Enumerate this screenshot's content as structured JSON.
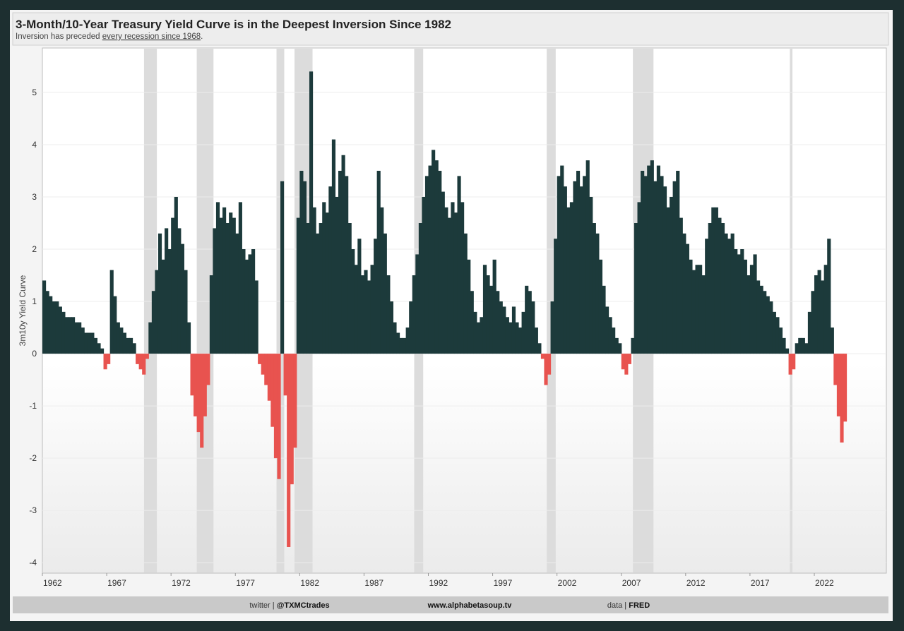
{
  "chart_data": {
    "type": "bar",
    "title": "3-Month/10-Year Treasury Yield Curve is in the Deepest Inversion Since 1982",
    "subtitle_prefix": "Inversion has preceded",
    "subtitle_link": "every recession since 1968",
    "subtitle_suffix": ".",
    "y_label": "3m10y Yield Curve",
    "footer": [
      {
        "label": "twitter |",
        "value": "@TXMCtrades"
      },
      {
        "label": "",
        "value": "www.alphabetasoup.tv"
      },
      {
        "label": "data |",
        "value": "FRED"
      }
    ],
    "color": "#1c3a3b",
    "negative_color": "#e8534f",
    "recession_color": "#dcdcdc",
    "grid": true,
    "xlim": [
      1962,
      2027.6
    ],
    "ylim": [
      -4.2,
      5.85
    ],
    "xticks": [
      1962,
      1967,
      1972,
      1977,
      1982,
      1987,
      1992,
      1997,
      2002,
      2007,
      2012,
      2017,
      2022
    ],
    "yticks": [
      -4,
      -3,
      -2,
      -1,
      0,
      1,
      2,
      3,
      4,
      5
    ],
    "recessions": [
      [
        1969.9,
        1970.9
      ],
      [
        1974.0,
        1975.3
      ],
      [
        1980.2,
        1980.8
      ],
      [
        1981.6,
        1983.0
      ],
      [
        1990.9,
        1991.6
      ],
      [
        2001.2,
        2001.9
      ],
      [
        2007.9,
        2009.5
      ],
      [
        2020.1,
        2020.3
      ]
    ],
    "x": [
      1962,
      1962.25,
      1962.5,
      1962.75,
      1963,
      1963.25,
      1963.5,
      1963.75,
      1964,
      1964.25,
      1964.5,
      1964.75,
      1965,
      1965.25,
      1965.5,
      1965.75,
      1966,
      1966.25,
      1966.5,
      1966.75,
      1967,
      1967.25,
      1967.5,
      1967.75,
      1968,
      1968.25,
      1968.5,
      1968.75,
      1969,
      1969.25,
      1969.5,
      1969.75,
      1970,
      1970.25,
      1970.5,
      1970.75,
      1971,
      1971.25,
      1971.5,
      1971.75,
      1972,
      1972.25,
      1972.5,
      1972.75,
      1973,
      1973.25,
      1973.5,
      1973.75,
      1974,
      1974.25,
      1974.5,
      1974.75,
      1975,
      1975.25,
      1975.5,
      1975.75,
      1976,
      1976.25,
      1976.5,
      1976.75,
      1977,
      1977.25,
      1977.5,
      1977.75,
      1978,
      1978.25,
      1978.5,
      1978.75,
      1979,
      1979.25,
      1979.5,
      1979.75,
      1980,
      1980.25,
      1980.5,
      1980.75,
      1981,
      1981.25,
      1981.5,
      1981.75,
      1982,
      1982.25,
      1982.5,
      1982.75,
      1983,
      1983.25,
      1983.5,
      1983.75,
      1984,
      1984.25,
      1984.5,
      1984.75,
      1985,
      1985.25,
      1985.5,
      1985.75,
      1986,
      1986.25,
      1986.5,
      1986.75,
      1987,
      1987.25,
      1987.5,
      1987.75,
      1988,
      1988.25,
      1988.5,
      1988.75,
      1989,
      1989.25,
      1989.5,
      1989.75,
      1990,
      1990.25,
      1990.5,
      1990.75,
      1991,
      1991.25,
      1991.5,
      1991.75,
      1992,
      1992.25,
      1992.5,
      1992.75,
      1993,
      1993.25,
      1993.5,
      1993.75,
      1994,
      1994.25,
      1994.5,
      1994.75,
      1995,
      1995.25,
      1995.5,
      1995.75,
      1996,
      1996.25,
      1996.5,
      1996.75,
      1997,
      1997.25,
      1997.5,
      1997.75,
      1998,
      1998.25,
      1998.5,
      1998.75,
      1999,
      1999.25,
      1999.5,
      1999.75,
      2000,
      2000.25,
      2000.5,
      2000.75,
      2001,
      2001.25,
      2001.5,
      2001.75,
      2002,
      2002.25,
      2002.5,
      2002.75,
      2003,
      2003.25,
      2003.5,
      2003.75,
      2004,
      2004.25,
      2004.5,
      2004.75,
      2005,
      2005.25,
      2005.5,
      2005.75,
      2006,
      2006.25,
      2006.5,
      2006.75,
      2007,
      2007.25,
      2007.5,
      2007.75,
      2008,
      2008.25,
      2008.5,
      2008.75,
      2009,
      2009.25,
      2009.5,
      2009.75,
      2010,
      2010.25,
      2010.5,
      2010.75,
      2011,
      2011.25,
      2011.5,
      2011.75,
      2012,
      2012.25,
      2012.5,
      2012.75,
      2013,
      2013.25,
      2013.5,
      2013.75,
      2014,
      2014.25,
      2014.5,
      2014.75,
      2015,
      2015.25,
      2015.5,
      2015.75,
      2016,
      2016.25,
      2016.5,
      2016.75,
      2017,
      2017.25,
      2017.5,
      2017.75,
      2018,
      2018.25,
      2018.5,
      2018.75,
      2019,
      2019.25,
      2019.5,
      2019.75,
      2020,
      2020.25,
      2020.5,
      2020.75,
      2021,
      2021.25,
      2021.5,
      2021.75,
      2022,
      2022.25,
      2022.5,
      2022.75,
      2023,
      2023.25,
      2023.5,
      2023.75,
      2024,
      2024.25
    ],
    "values": [
      1.4,
      1.2,
      1.1,
      1.0,
      1.0,
      0.9,
      0.8,
      0.7,
      0.7,
      0.7,
      0.6,
      0.6,
      0.5,
      0.4,
      0.4,
      0.4,
      0.3,
      0.2,
      0.1,
      -0.3,
      -0.2,
      1.6,
      1.1,
      0.6,
      0.5,
      0.4,
      0.3,
      0.3,
      0.2,
      -0.2,
      -0.3,
      -0.4,
      -0.1,
      0.6,
      1.2,
      1.6,
      2.3,
      1.8,
      2.4,
      2.0,
      2.6,
      3.0,
      2.4,
      2.1,
      1.6,
      0.6,
      -0.8,
      -1.2,
      -1.5,
      -1.8,
      -1.2,
      -0.6,
      1.5,
      2.4,
      2.9,
      2.6,
      2.8,
      2.5,
      2.7,
      2.6,
      2.3,
      2.9,
      2.0,
      1.8,
      1.9,
      2.0,
      1.4,
      -0.2,
      -0.4,
      -0.6,
      -0.9,
      -1.4,
      -2.0,
      -2.4,
      3.3,
      -0.8,
      -3.7,
      -2.5,
      -1.8,
      2.6,
      3.5,
      3.3,
      2.5,
      5.4,
      2.8,
      2.3,
      2.5,
      2.9,
      2.7,
      3.2,
      4.1,
      3.0,
      3.5,
      3.8,
      3.4,
      2.5,
      2.0,
      1.7,
      2.2,
      1.5,
      1.6,
      1.4,
      1.7,
      2.2,
      3.5,
      2.8,
      2.3,
      1.5,
      1.0,
      0.6,
      0.4,
      0.3,
      0.3,
      0.5,
      1.0,
      1.5,
      1.9,
      2.5,
      3.0,
      3.4,
      3.6,
      3.9,
      3.7,
      3.5,
      3.1,
      2.8,
      2.6,
      2.9,
      2.7,
      3.4,
      2.9,
      2.3,
      1.8,
      1.2,
      0.8,
      0.6,
      0.7,
      1.7,
      1.5,
      1.3,
      1.8,
      1.2,
      1.0,
      0.9,
      0.7,
      0.6,
      0.9,
      0.6,
      0.5,
      0.8,
      1.3,
      1.2,
      1.0,
      0.5,
      0.2,
      -0.1,
      -0.6,
      -0.4,
      1.0,
      2.2,
      3.4,
      3.6,
      3.2,
      2.8,
      2.9,
      3.3,
      3.5,
      3.2,
      3.4,
      3.7,
      3.0,
      2.5,
      2.3,
      1.8,
      1.3,
      0.9,
      0.7,
      0.5,
      0.3,
      0.2,
      -0.3,
      -0.4,
      -0.2,
      0.3,
      2.5,
      2.9,
      3.5,
      3.4,
      3.6,
      3.7,
      3.3,
      3.6,
      3.4,
      3.2,
      2.8,
      3.0,
      3.3,
      3.5,
      2.6,
      2.3,
      2.1,
      1.8,
      1.6,
      1.7,
      1.7,
      1.5,
      2.2,
      2.5,
      2.8,
      2.8,
      2.6,
      2.5,
      2.3,
      2.2,
      2.3,
      2.0,
      1.9,
      2.0,
      1.8,
      1.5,
      1.7,
      1.9,
      1.4,
      1.3,
      1.2,
      1.1,
      1.0,
      0.8,
      0.7,
      0.5,
      0.3,
      0.1,
      -0.4,
      -0.3,
      0.2,
      0.3,
      0.3,
      0.2,
      0.8,
      1.2,
      1.5,
      1.6,
      1.4,
      1.7,
      2.2,
      0.5,
      -0.6,
      -1.2,
      -1.7,
      -1.3
    ]
  }
}
